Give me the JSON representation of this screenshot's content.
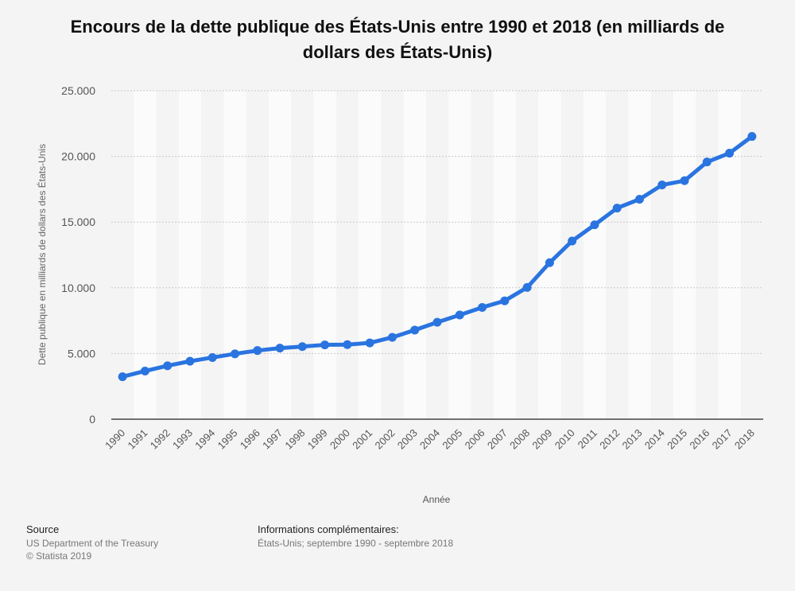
{
  "chart_data": {
    "type": "line",
    "title": "Encours de la dette publique des États-Unis entre 1990 et 2018 (en milliards de dollars des États-Unis)",
    "xlabel": "Année",
    "ylabel": "Dette publique en milliards de dollars des États-Unis",
    "ylim": [
      0,
      25000
    ],
    "yticks": [
      "0",
      "5.000",
      "10.000",
      "15.000",
      "20.000",
      "25.000"
    ],
    "ytick_values": [
      0,
      5000,
      10000,
      15000,
      20000,
      25000
    ],
    "grid": true,
    "categories": [
      "1990",
      "1991",
      "1992",
      "1993",
      "1994",
      "1995",
      "1996",
      "1997",
      "1998",
      "1999",
      "2000",
      "2001",
      "2002",
      "2003",
      "2004",
      "2005",
      "2006",
      "2007",
      "2008",
      "2009",
      "2010",
      "2011",
      "2012",
      "2013",
      "2014",
      "2015",
      "2016",
      "2017",
      "2018"
    ],
    "values": [
      3233,
      3665,
      4065,
      4411,
      4693,
      4974,
      5225,
      5413,
      5526,
      5656,
      5674,
      5807,
      6228,
      6783,
      7379,
      7933,
      8507,
      9008,
      10025,
      11910,
      13562,
      14790,
      16066,
      16738,
      17824,
      18151,
      19573,
      20245,
      21516
    ],
    "line_color": "#2a74e0"
  },
  "source": {
    "heading": "Source",
    "line1": "US Department of the Treasury",
    "line2": "© Statista 2019"
  },
  "info": {
    "heading": "Informations complémentaires:",
    "line1": "États-Unis; septembre 1990 - septembre 2018"
  }
}
